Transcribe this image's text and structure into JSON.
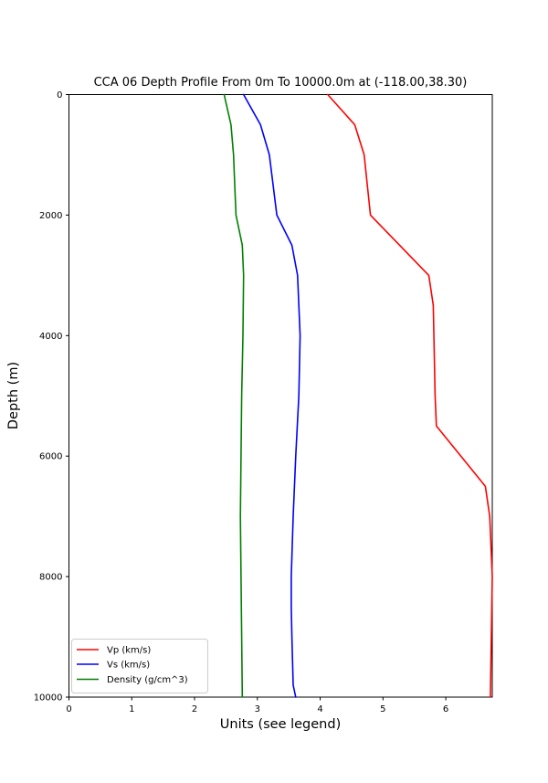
{
  "chart_data": {
    "type": "line",
    "title": "CCA 06 Depth Profile From 0m To 10000.0m at (-118.00,38.30)",
    "xlabel": "Units (see legend)",
    "ylabel": "Depth (m)",
    "xlim": [
      0,
      6.74
    ],
    "ylim": [
      0,
      10000
    ],
    "y_axis_inverted": true,
    "grid": false,
    "x_ticks": [
      0,
      1,
      2,
      3,
      4,
      5,
      6
    ],
    "y_ticks": [
      0,
      2000,
      4000,
      6000,
      8000,
      10000
    ],
    "legend_position": "lower-left",
    "axis_color": "#000000",
    "legend_border_color": "#cccccc",
    "series": [
      {
        "name": "Vp (km/s)",
        "color": "#ff0000",
        "depths": [
          0,
          500,
          1000,
          2000,
          3000,
          3500,
          5000,
          5500,
          6500,
          7000,
          8000,
          10000
        ],
        "values": [
          4.12,
          4.55,
          4.7,
          4.8,
          5.73,
          5.8,
          5.83,
          5.85,
          6.63,
          6.7,
          6.74,
          6.71
        ]
      },
      {
        "name": "Vs (km/s)",
        "color": "#0000ff",
        "depths": [
          0,
          500,
          1000,
          2000,
          2500,
          3000,
          4000,
          5000,
          6000,
          7000,
          8000,
          8500,
          9000,
          9800,
          10000
        ],
        "values": [
          2.78,
          3.05,
          3.19,
          3.31,
          3.55,
          3.64,
          3.68,
          3.66,
          3.61,
          3.57,
          3.54,
          3.54,
          3.55,
          3.57,
          3.61
        ]
      },
      {
        "name": "Density (g/cm^3)",
        "color": "#008000",
        "depths": [
          0,
          500,
          1000,
          1500,
          2000,
          2500,
          3000,
          4000,
          5000,
          6000,
          7000,
          8000,
          9000,
          10000
        ],
        "values": [
          2.47,
          2.58,
          2.62,
          2.64,
          2.66,
          2.76,
          2.78,
          2.77,
          2.75,
          2.74,
          2.73,
          2.74,
          2.75,
          2.76
        ]
      }
    ]
  }
}
